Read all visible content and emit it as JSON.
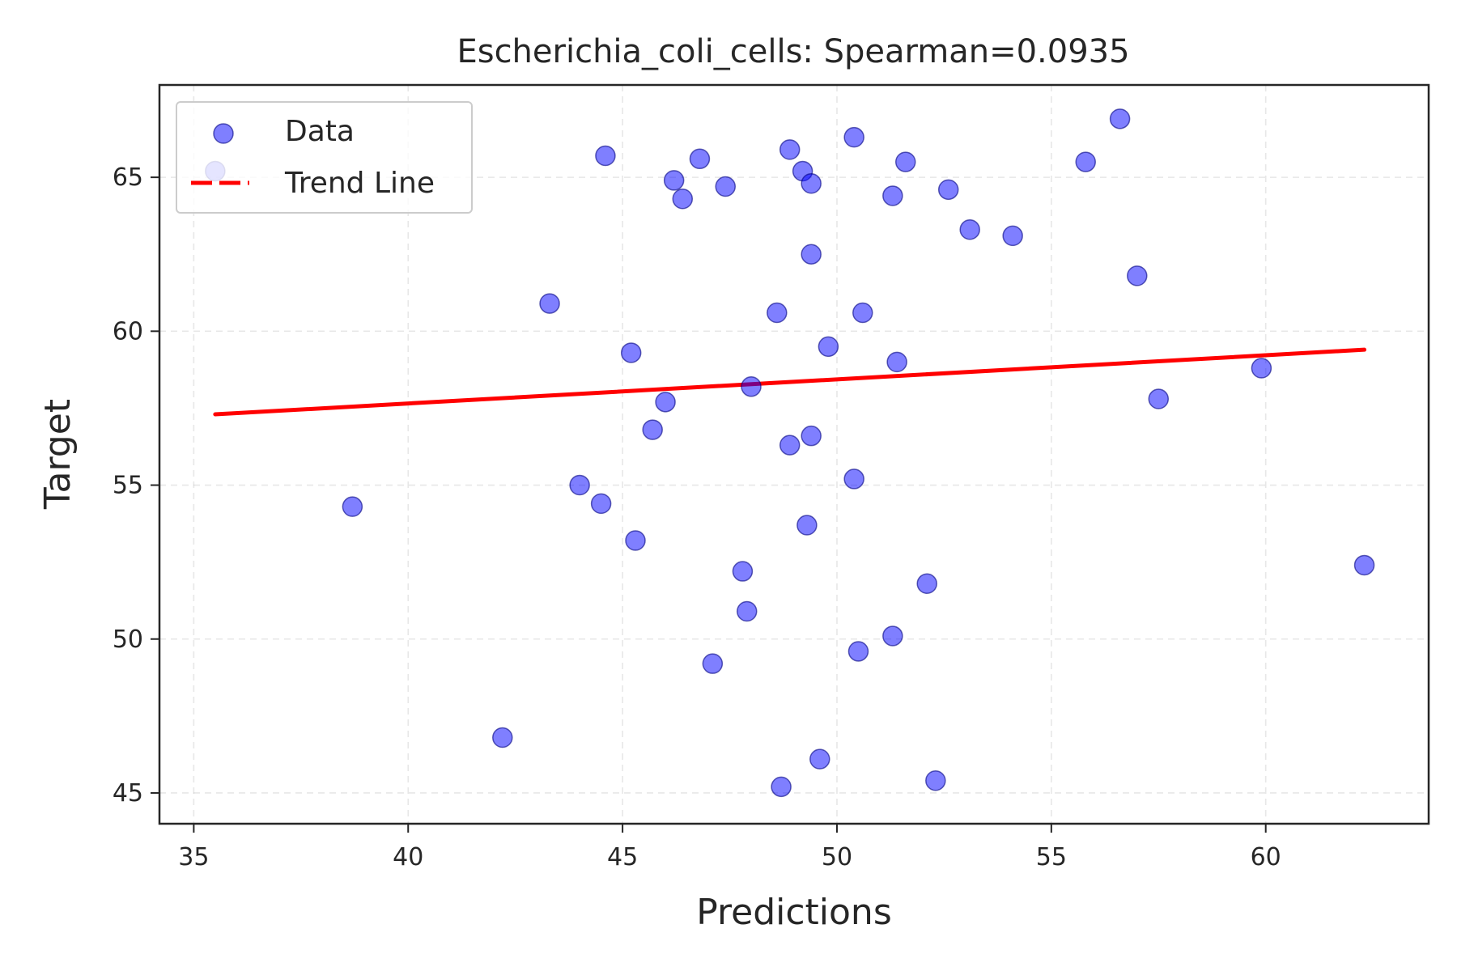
{
  "chart_data": {
    "type": "scatter",
    "title": "Escherichia_coli_cells: Spearman=0.0935",
    "xlabel": "Predictions",
    "ylabel": "Target",
    "xlim": [
      34.2,
      63.8
    ],
    "ylim": [
      44.0,
      68.0
    ],
    "xticks": [
      35,
      40,
      45,
      50,
      55,
      60
    ],
    "yticks": [
      45,
      50,
      55,
      60,
      65
    ],
    "grid": true,
    "legend_position": "top-left",
    "series": [
      {
        "name": "Data",
        "kind": "scatter",
        "color": "#0000ff",
        "points": [
          [
            35.5,
            65.2
          ],
          [
            38.7,
            54.3
          ],
          [
            42.2,
            46.8
          ],
          [
            43.3,
            60.9
          ],
          [
            44.0,
            55.0
          ],
          [
            44.5,
            54.4
          ],
          [
            44.6,
            65.7
          ],
          [
            45.2,
            59.3
          ],
          [
            45.3,
            53.2
          ],
          [
            45.7,
            56.8
          ],
          [
            46.0,
            57.7
          ],
          [
            46.2,
            64.9
          ],
          [
            46.4,
            64.3
          ],
          [
            46.8,
            65.6
          ],
          [
            47.1,
            49.2
          ],
          [
            47.4,
            64.7
          ],
          [
            47.8,
            52.2
          ],
          [
            47.9,
            50.9
          ],
          [
            48.0,
            58.2
          ],
          [
            48.6,
            60.6
          ],
          [
            48.7,
            45.2
          ],
          [
            48.9,
            65.9
          ],
          [
            48.9,
            56.3
          ],
          [
            49.2,
            65.2
          ],
          [
            49.3,
            53.7
          ],
          [
            49.4,
            62.5
          ],
          [
            49.4,
            64.8
          ],
          [
            49.4,
            56.6
          ],
          [
            49.6,
            46.1
          ],
          [
            49.8,
            59.5
          ],
          [
            50.4,
            66.3
          ],
          [
            50.4,
            55.2
          ],
          [
            50.5,
            49.6
          ],
          [
            50.6,
            60.6
          ],
          [
            51.3,
            64.4
          ],
          [
            51.3,
            50.1
          ],
          [
            51.4,
            59.0
          ],
          [
            51.6,
            65.5
          ],
          [
            52.1,
            51.8
          ],
          [
            52.3,
            45.4
          ],
          [
            52.6,
            64.6
          ],
          [
            53.1,
            63.3
          ],
          [
            54.1,
            63.1
          ],
          [
            55.8,
            65.5
          ],
          [
            56.6,
            66.9
          ],
          [
            57.0,
            61.8
          ],
          [
            57.5,
            57.8
          ],
          [
            59.9,
            58.8
          ],
          [
            62.3,
            52.4
          ]
        ]
      },
      {
        "name": "Trend Line",
        "kind": "line",
        "color": "#ff0000",
        "points": [
          [
            35.5,
            57.3
          ],
          [
            62.3,
            59.4
          ]
        ]
      }
    ]
  }
}
